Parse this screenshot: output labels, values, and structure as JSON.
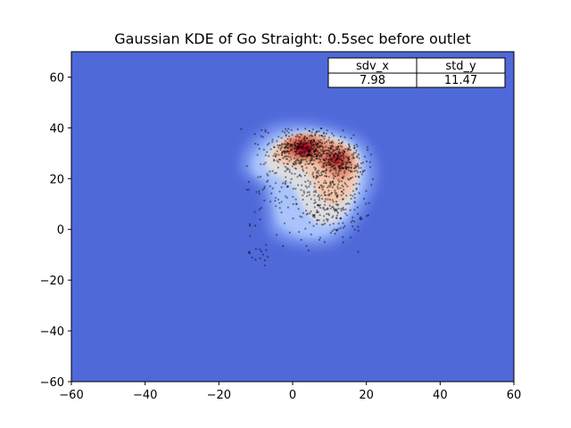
{
  "chart_data": {
    "type": "heatmap",
    "title": "Gaussian KDE of Go Straight: 0.5sec before outlet",
    "xlabel": "",
    "ylabel": "",
    "xlim": [
      -60,
      60
    ],
    "ylim": [
      -60,
      70
    ],
    "x_ticks": [
      -60,
      -40,
      -20,
      0,
      20,
      40,
      60
    ],
    "y_ticks": [
      -60,
      -40,
      -20,
      0,
      20,
      40,
      60
    ],
    "x_tick_labels": [
      "−60",
      "−40",
      "−20",
      "0",
      "20",
      "40",
      "60"
    ],
    "y_tick_labels": [
      "−60",
      "−40",
      "−20",
      "0",
      "20",
      "40",
      "60"
    ],
    "grid": false,
    "colormap": "coolwarm",
    "background_color": "#4f69d9",
    "point_color": "#000000",
    "density_modes": [
      {
        "x": 3,
        "y": 32,
        "weight": 1.0
      },
      {
        "x": 12,
        "y": 27,
        "weight": 0.85
      }
    ],
    "scatter_region": {
      "x_range": [
        -14,
        22
      ],
      "y_range": [
        -16,
        40
      ]
    },
    "stats_table": {
      "headers": [
        "sdv_x",
        "std_y"
      ],
      "values": [
        "7.98",
        "11.47"
      ]
    }
  }
}
